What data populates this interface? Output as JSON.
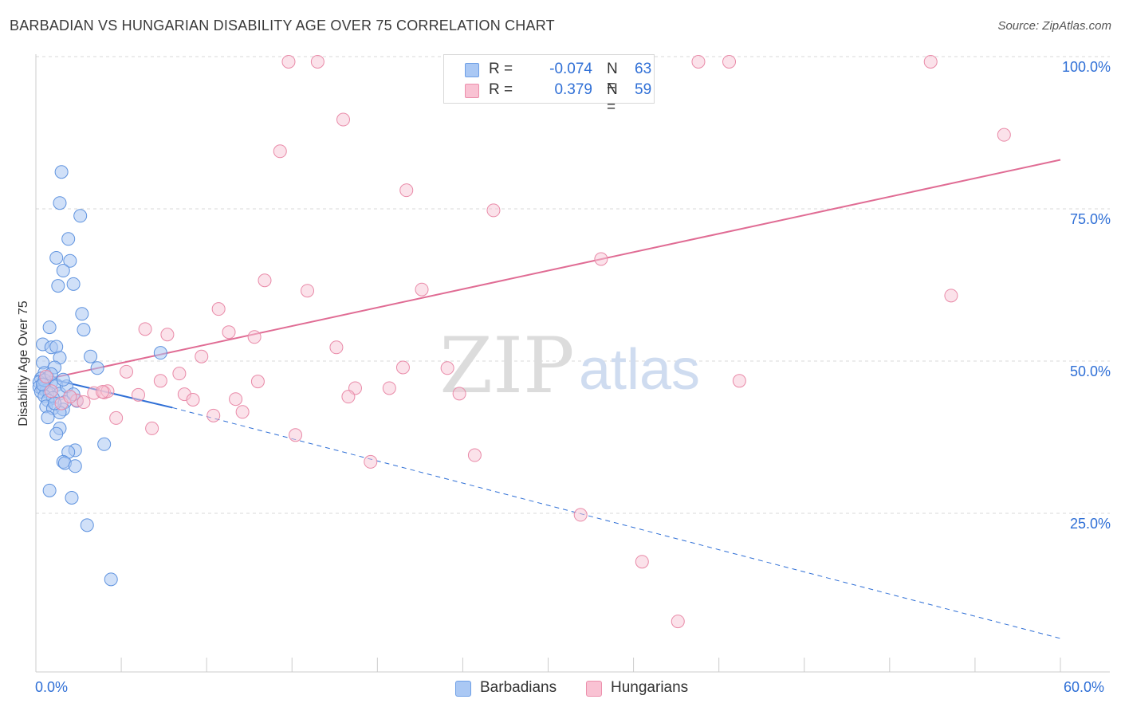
{
  "header": {
    "title": "BARBADIAN VS HUNGARIAN DISABILITY AGE OVER 75 CORRELATION CHART",
    "source": "Source: ZipAtlas.com"
  },
  "watermark": {
    "zip": "ZIP",
    "atlas": "atlas"
  },
  "legend": {
    "r_label": "R =",
    "n_label": "N =",
    "rows": [
      {
        "name": "Barbadians",
        "r": "-0.074",
        "n": "63",
        "color": "#aac8f4",
        "border": "#6e9fe6"
      },
      {
        "name": "Hungarians",
        "r": "0.379",
        "n": "59",
        "color": "#f9c2d3",
        "border": "#ec8fac"
      }
    ]
  },
  "colors": {
    "blue_point": "#a9c7f2",
    "blue_stroke": "#5f93df",
    "blue_line": "#2f6fd6",
    "pink_point": "#f8c6d5",
    "pink_stroke": "#e98aa8",
    "pink_line": "#e06c94",
    "tick_text": "#2f6fd6",
    "grid": "#d9d9d9"
  },
  "chart_data": {
    "type": "scatter",
    "title": "BARBADIAN VS HUNGARIAN DISABILITY AGE OVER 75 CORRELATION CHART",
    "xlabel": "",
    "ylabel": "Disability Age Over 75",
    "xlim": [
      0,
      60
    ],
    "ylim": [
      0,
      102
    ],
    "x_tick_labels": [
      "0.0%",
      "60.0%"
    ],
    "y_ticks": [
      25,
      50,
      75,
      100
    ],
    "y_tick_labels": [
      "25.0%",
      "50.0%",
      "75.0%",
      "100.0%"
    ],
    "grid": true,
    "series": [
      {
        "name": "Barbadians",
        "r": -0.074,
        "n": 63,
        "trend": {
          "x0": 0,
          "y0": 48.7,
          "x1": 8,
          "y1": 43.4,
          "dashed_to_x": 60,
          "dashed_to_y": 5.5
        },
        "points": [
          [
            1.5,
            82.1
          ],
          [
            1.4,
            77.0
          ],
          [
            2.6,
            74.9
          ],
          [
            1.9,
            71.1
          ],
          [
            1.2,
            68.0
          ],
          [
            2.0,
            67.5
          ],
          [
            1.6,
            65.9
          ],
          [
            2.2,
            63.7
          ],
          [
            1.3,
            63.4
          ],
          [
            2.7,
            58.8
          ],
          [
            0.8,
            56.6
          ],
          [
            2.8,
            56.2
          ],
          [
            0.4,
            53.8
          ],
          [
            0.9,
            53.3
          ],
          [
            1.2,
            53.4
          ],
          [
            3.2,
            51.8
          ],
          [
            1.4,
            51.6
          ],
          [
            7.3,
            52.4
          ],
          [
            0.4,
            50.8
          ],
          [
            1.1,
            50.0
          ],
          [
            3.6,
            49.9
          ],
          [
            0.5,
            49.1
          ],
          [
            0.3,
            48.2
          ],
          [
            0.7,
            48.3
          ],
          [
            0.2,
            47.6
          ],
          [
            0.9,
            47.5
          ],
          [
            1.2,
            47.1
          ],
          [
            0.2,
            46.8
          ],
          [
            0.4,
            46.5
          ],
          [
            0.6,
            46.2
          ],
          [
            0.3,
            46.0
          ],
          [
            0.8,
            45.8
          ],
          [
            1.4,
            45.7
          ],
          [
            0.5,
            45.3
          ],
          [
            2.0,
            45.2
          ],
          [
            1.0,
            45.0
          ],
          [
            0.7,
            44.6
          ],
          [
            2.4,
            44.5
          ],
          [
            1.7,
            44.3
          ],
          [
            0.6,
            43.6
          ],
          [
            1.0,
            43.3
          ],
          [
            1.6,
            43.1
          ],
          [
            1.4,
            42.6
          ],
          [
            0.7,
            41.8
          ],
          [
            1.4,
            40.0
          ],
          [
            1.2,
            39.1
          ],
          [
            4.0,
            37.4
          ],
          [
            2.3,
            36.4
          ],
          [
            1.9,
            36.1
          ],
          [
            1.6,
            34.5
          ],
          [
            1.7,
            34.3
          ],
          [
            2.3,
            33.8
          ],
          [
            0.8,
            29.8
          ],
          [
            2.1,
            28.6
          ],
          [
            3.0,
            24.1
          ],
          [
            4.4,
            15.2
          ],
          [
            0.5,
            47.9
          ],
          [
            1.8,
            46.9
          ],
          [
            0.9,
            48.9
          ],
          [
            2.2,
            45.6
          ],
          [
            1.1,
            44.1
          ],
          [
            0.4,
            47.2
          ],
          [
            1.6,
            48.0
          ]
        ]
      },
      {
        "name": "Hungarians",
        "r": 0.379,
        "n": 59,
        "trend": {
          "x0": 0,
          "y0": 47.7,
          "x1": 60,
          "y1": 84.1
        },
        "points": [
          [
            14.8,
            100.2
          ],
          [
            16.5,
            100.2
          ],
          [
            28.8,
            100.2
          ],
          [
            29.7,
            99.7
          ],
          [
            38.8,
            100.2
          ],
          [
            40.6,
            100.2
          ],
          [
            52.4,
            100.2
          ],
          [
            18.0,
            90.7
          ],
          [
            14.3,
            85.5
          ],
          [
            56.7,
            88.2
          ],
          [
            21.7,
            79.1
          ],
          [
            26.8,
            75.8
          ],
          [
            33.1,
            67.8
          ],
          [
            13.4,
            64.3
          ],
          [
            15.9,
            62.6
          ],
          [
            22.6,
            62.8
          ],
          [
            53.6,
            61.8
          ],
          [
            10.7,
            59.6
          ],
          [
            6.4,
            56.3
          ],
          [
            7.7,
            55.4
          ],
          [
            11.3,
            55.8
          ],
          [
            12.8,
            55.0
          ],
          [
            17.6,
            53.3
          ],
          [
            9.7,
            51.8
          ],
          [
            21.5,
            50.0
          ],
          [
            24.1,
            49.9
          ],
          [
            5.3,
            49.3
          ],
          [
            8.4,
            49.0
          ],
          [
            0.6,
            48.5
          ],
          [
            41.2,
            47.8
          ],
          [
            7.3,
            47.8
          ],
          [
            18.7,
            46.6
          ],
          [
            20.7,
            46.6
          ],
          [
            3.4,
            45.8
          ],
          [
            4.0,
            45.9
          ],
          [
            4.2,
            46.1
          ],
          [
            6.0,
            45.5
          ],
          [
            8.7,
            45.6
          ],
          [
            18.3,
            45.2
          ],
          [
            24.8,
            45.7
          ],
          [
            2.4,
            44.6
          ],
          [
            2.8,
            44.3
          ],
          [
            4.7,
            41.7
          ],
          [
            9.2,
            44.7
          ],
          [
            11.7,
            44.8
          ],
          [
            12.1,
            42.7
          ],
          [
            10.4,
            42.1
          ],
          [
            6.8,
            40.0
          ],
          [
            15.2,
            38.9
          ],
          [
            25.7,
            35.6
          ],
          [
            19.6,
            34.5
          ],
          [
            31.9,
            25.8
          ],
          [
            35.5,
            18.1
          ],
          [
            37.6,
            8.3
          ],
          [
            1.5,
            44.1
          ],
          [
            3.9,
            46.0
          ],
          [
            2.0,
            45.2
          ],
          [
            0.9,
            46.1
          ],
          [
            13.0,
            47.7
          ]
        ]
      }
    ]
  }
}
